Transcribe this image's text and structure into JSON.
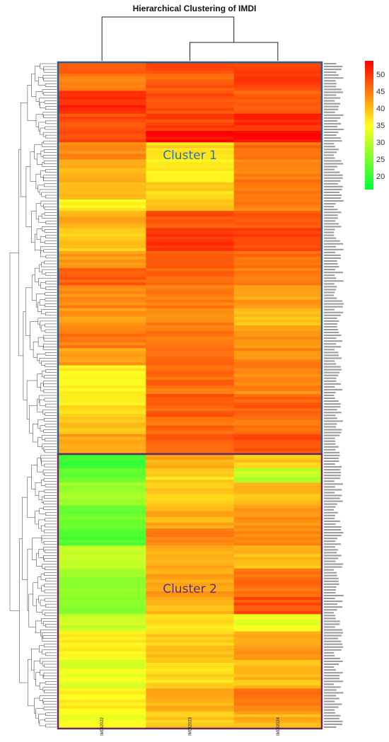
{
  "chart_data": {
    "type": "heatmap",
    "title": "Hierarchical Clustering of IMDI",
    "columns": [
      "IMDI2022",
      "IMDI2023",
      "IMDI2024"
    ],
    "color_scale": {
      "min": 16,
      "max": 54,
      "colors": [
        "#00ff3a",
        "#ffff20",
        "#ff0000"
      ],
      "ticks": [
        20,
        25,
        30,
        35,
        40,
        45,
        50
      ]
    },
    "annotations": [
      {
        "label": "Cluster 1",
        "color": "#2f6fb0"
      },
      {
        "label": "Cluster 2",
        "color": "#5b2a86"
      }
    ],
    "clusters": [
      {
        "label": "Cluster 1",
        "border": "#2c5d8a",
        "bands": [
          {
            "rows": 4,
            "values": [
              47,
              49,
              50
            ]
          },
          {
            "rows": 6,
            "values": [
              45,
              47,
              49
            ]
          },
          {
            "rows": 8,
            "values": [
              51,
              48,
              47
            ]
          },
          {
            "rows": 6,
            "values": [
              48,
              49,
              51
            ]
          },
          {
            "rows": 4,
            "values": [
              49,
              53,
              53
            ]
          },
          {
            "rows": 6,
            "values": [
              44,
              38,
              46
            ]
          },
          {
            "rows": 8,
            "values": [
              41,
              36,
              45
            ]
          },
          {
            "rows": 6,
            "values": [
              40,
              38,
              44
            ]
          },
          {
            "rows": 4,
            "values": [
              36,
              40,
              45
            ]
          },
          {
            "rows": 6,
            "values": [
              41,
              48,
              48
            ]
          },
          {
            "rows": 8,
            "values": [
              39,
              50,
              49
            ]
          },
          {
            "rows": 6,
            "values": [
              42,
              47,
              46
            ]
          },
          {
            "rows": 6,
            "values": [
              47,
              46,
              45
            ]
          },
          {
            "rows": 8,
            "values": [
              44,
              45,
              42
            ]
          },
          {
            "rows": 6,
            "values": [
              43,
              44,
              40
            ]
          },
          {
            "rows": 8,
            "values": [
              45,
              45,
              43
            ]
          },
          {
            "rows": 6,
            "values": [
              42,
              46,
              44
            ]
          },
          {
            "rows": 10,
            "values": [
              36,
              46,
              44
            ]
          },
          {
            "rows": 8,
            "values": [
              37,
              47,
              47
            ]
          },
          {
            "rows": 6,
            "values": [
              39,
              46,
              45
            ]
          },
          {
            "rows": 7,
            "values": [
              42,
              47,
              48
            ]
          }
        ]
      },
      {
        "label": "Cluster 2",
        "border": "#6b2a5e",
        "bands": [
          {
            "rows": 5,
            "values": [
              20,
              41,
              39
            ]
          },
          {
            "rows": 5,
            "values": [
              23,
              38,
              30
            ]
          },
          {
            "rows": 8,
            "values": [
              28,
              39,
              40
            ]
          },
          {
            "rows": 8,
            "values": [
              24,
              41,
              43
            ]
          },
          {
            "rows": 6,
            "values": [
              22,
              44,
              44
            ]
          },
          {
            "rows": 8,
            "values": [
              30,
              41,
              40
            ]
          },
          {
            "rows": 10,
            "values": [
              27,
              42,
              46
            ]
          },
          {
            "rows": 6,
            "values": [
              26,
              40,
              48
            ]
          },
          {
            "rows": 6,
            "values": [
              31,
              37,
              34
            ]
          },
          {
            "rows": 10,
            "values": [
              36,
              39,
              42
            ]
          },
          {
            "rows": 10,
            "values": [
              33,
              38,
              40
            ]
          },
          {
            "rows": 8,
            "values": [
              36,
              41,
              45
            ]
          },
          {
            "rows": 6,
            "values": [
              34,
              39,
              41
            ]
          }
        ]
      }
    ],
    "row_labels_legible": false
  }
}
